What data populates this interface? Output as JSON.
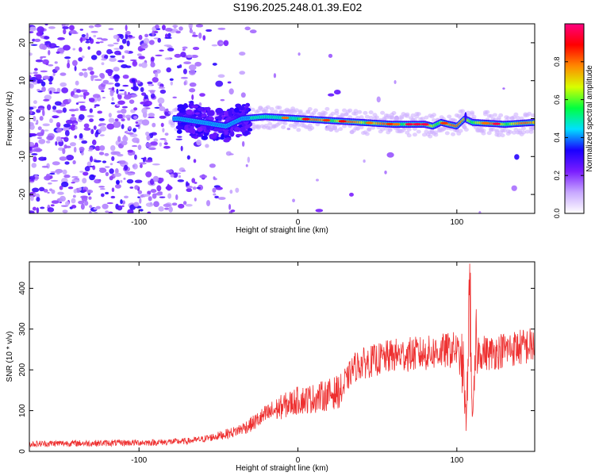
{
  "title": "S196.2025.248.01.39.E02",
  "chart_data": [
    {
      "type": "heatmap",
      "name": "spectrogram",
      "xlabel": "Height of straight line (km)",
      "ylabel": "Frequency (Hz)",
      "xlim": [
        -169,
        149
      ],
      "ylim": [
        -25,
        25
      ],
      "xticks": [
        -100,
        0,
        100
      ],
      "yticks": [
        -20,
        -10,
        0,
        10,
        20
      ],
      "grid": false,
      "ridge": {
        "description_points": [
          [
            -75,
            0
          ],
          [
            -60,
            -1
          ],
          [
            -45,
            -2
          ],
          [
            -35,
            0
          ],
          [
            -20,
            0.5
          ],
          [
            0,
            0
          ],
          [
            20,
            -0.5
          ],
          [
            40,
            -1
          ],
          [
            60,
            -1.5
          ],
          [
            80,
            -1.5
          ],
          [
            85,
            -2
          ],
          [
            90,
            -1
          ],
          [
            95,
            -1.5
          ],
          [
            100,
            -2
          ],
          [
            105,
            0
          ],
          [
            110,
            -1
          ],
          [
            130,
            -1.5
          ],
          [
            149,
            -1
          ]
        ]
      },
      "colorbar": {
        "label": "Normalized spectral amplitude",
        "range": [
          0,
          1
        ],
        "ticks": [
          0.0,
          0.2,
          0.4,
          0.6,
          0.8
        ],
        "tick_labels": [
          "0.0",
          "0.2",
          "0.4",
          "0.6",
          "0.8"
        ],
        "colors": [
          "#ffffff",
          "#c8a8ff",
          "#7a1dff",
          "#1a00ff",
          "#00e0ff",
          "#00ff40",
          "#d8ff00",
          "#ff8800",
          "#ff0000",
          "#ff0080"
        ]
      }
    },
    {
      "type": "line",
      "name": "snr",
      "xlabel": "Height of straight line (km)",
      "ylabel": "SNR (10 * v/v)",
      "xlim": [
        -169,
        149
      ],
      "ylim": [
        0,
        465
      ],
      "xticks": [
        -100,
        0,
        100
      ],
      "yticks": [
        0,
        100,
        200,
        300,
        400
      ],
      "grid": false,
      "color": "#ee3030",
      "series": [
        {
          "name": "SNR",
          "x": [
            -169,
            -150,
            -130,
            -110,
            -90,
            -70,
            -60,
            -50,
            -40,
            -30,
            -20,
            -10,
            0,
            10,
            20,
            28,
            32,
            35,
            40,
            50,
            60,
            70,
            80,
            90,
            100,
            104,
            106,
            108,
            110,
            112,
            115,
            120,
            130,
            140,
            149
          ],
          "y": [
            18,
            20,
            20,
            21,
            22,
            25,
            30,
            38,
            48,
            65,
            90,
            110,
            125,
            130,
            140,
            150,
            185,
            205,
            215,
            225,
            235,
            238,
            240,
            245,
            250,
            200,
            60,
            420,
            60,
            250,
            245,
            240,
            250,
            255,
            260
          ]
        }
      ]
    }
  ]
}
